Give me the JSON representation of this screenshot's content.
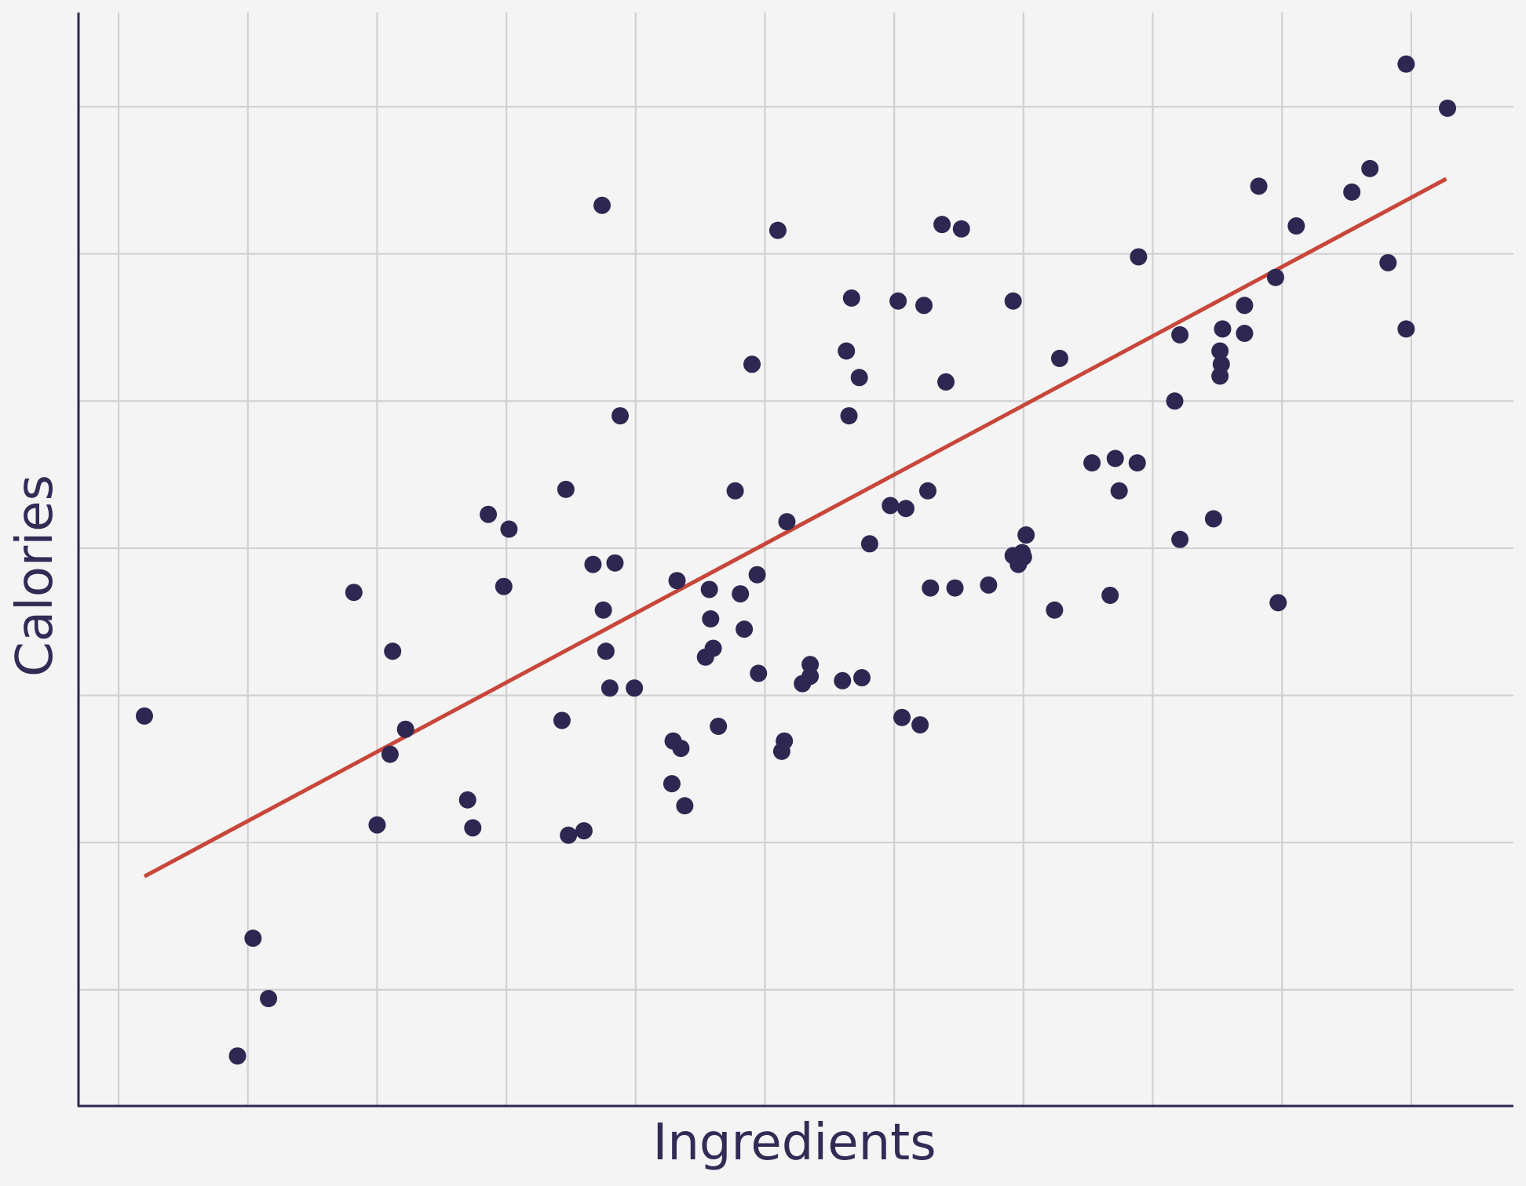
{
  "chart_data": {
    "type": "scatter",
    "title": "",
    "xlabel": "Ingredients",
    "ylabel": "Calories",
    "xlim": [
      0,
      11.1
    ],
    "ylim": [
      0,
      7.43
    ],
    "grid": true,
    "legend": "none",
    "x_ticks": [
      0.31,
      1.31,
      2.31,
      3.31,
      4.31,
      5.31,
      6.31,
      7.31,
      8.31,
      9.31,
      10.31
    ],
    "y_ticks": [
      0.79,
      1.79,
      2.79,
      3.79,
      4.79,
      5.79,
      6.79
    ],
    "tick_labels_shown": false,
    "colors": {
      "background": "#f4f4f4",
      "grid": "#d0d0d0",
      "axis": "#2e2752",
      "points": "#2e2752",
      "trendline": "#c8463a",
      "label": "#332a55"
    },
    "trendline": {
      "x": [
        0.51,
        10.58
      ],
      "y": [
        1.56,
        6.3
      ]
    },
    "series": [
      {
        "points": [
          {
            "x": 0.51,
            "y": 2.65
          },
          {
            "x": 1.23,
            "y": 0.34
          },
          {
            "x": 1.35,
            "y": 1.14
          },
          {
            "x": 1.47,
            "y": 0.73
          },
          {
            "x": 2.13,
            "y": 3.49
          },
          {
            "x": 2.31,
            "y": 1.91
          },
          {
            "x": 2.41,
            "y": 2.39
          },
          {
            "x": 2.43,
            "y": 3.09
          },
          {
            "x": 2.53,
            "y": 2.56
          },
          {
            "x": 3.01,
            "y": 2.08
          },
          {
            "x": 3.05,
            "y": 1.89
          },
          {
            "x": 3.17,
            "y": 4.02
          },
          {
            "x": 3.29,
            "y": 3.53
          },
          {
            "x": 3.33,
            "y": 3.92
          },
          {
            "x": 3.74,
            "y": 2.62
          },
          {
            "x": 3.77,
            "y": 4.19
          },
          {
            "x": 3.79,
            "y": 1.84
          },
          {
            "x": 3.91,
            "y": 1.87
          },
          {
            "x": 3.98,
            "y": 3.68
          },
          {
            "x": 4.05,
            "y": 6.12
          },
          {
            "x": 4.06,
            "y": 3.37
          },
          {
            "x": 4.08,
            "y": 3.09
          },
          {
            "x": 4.11,
            "y": 2.84
          },
          {
            "x": 4.15,
            "y": 3.69
          },
          {
            "x": 4.19,
            "y": 4.69
          },
          {
            "x": 4.3,
            "y": 2.84
          },
          {
            "x": 4.59,
            "y": 2.19
          },
          {
            "x": 4.6,
            "y": 2.48
          },
          {
            "x": 4.63,
            "y": 3.57
          },
          {
            "x": 4.66,
            "y": 2.43
          },
          {
            "x": 4.69,
            "y": 2.04
          },
          {
            "x": 4.85,
            "y": 3.05
          },
          {
            "x": 4.88,
            "y": 3.51
          },
          {
            "x": 4.89,
            "y": 3.31
          },
          {
            "x": 4.91,
            "y": 3.11
          },
          {
            "x": 4.95,
            "y": 2.58
          },
          {
            "x": 5.08,
            "y": 4.18
          },
          {
            "x": 5.12,
            "y": 3.48
          },
          {
            "x": 5.15,
            "y": 3.24
          },
          {
            "x": 5.21,
            "y": 5.04
          },
          {
            "x": 5.25,
            "y": 3.61
          },
          {
            "x": 5.26,
            "y": 2.94
          },
          {
            "x": 5.41,
            "y": 5.95
          },
          {
            "x": 5.44,
            "y": 2.41
          },
          {
            "x": 5.46,
            "y": 2.48
          },
          {
            "x": 5.48,
            "y": 3.97
          },
          {
            "x": 5.6,
            "y": 2.87
          },
          {
            "x": 5.66,
            "y": 3
          },
          {
            "x": 5.66,
            "y": 2.92
          },
          {
            "x": 5.91,
            "y": 2.89
          },
          {
            "x": 5.94,
            "y": 5.13
          },
          {
            "x": 5.96,
            "y": 4.69
          },
          {
            "x": 5.98,
            "y": 5.49
          },
          {
            "x": 6.04,
            "y": 4.95
          },
          {
            "x": 6.06,
            "y": 2.91
          },
          {
            "x": 6.12,
            "y": 3.82
          },
          {
            "x": 6.28,
            "y": 4.08
          },
          {
            "x": 6.34,
            "y": 5.47
          },
          {
            "x": 6.37,
            "y": 2.64
          },
          {
            "x": 6.4,
            "y": 4.06
          },
          {
            "x": 6.51,
            "y": 2.59
          },
          {
            "x": 6.54,
            "y": 5.44
          },
          {
            "x": 6.57,
            "y": 4.18
          },
          {
            "x": 6.59,
            "y": 3.52
          },
          {
            "x": 6.68,
            "y": 5.99
          },
          {
            "x": 6.71,
            "y": 4.92
          },
          {
            "x": 6.78,
            "y": 3.52
          },
          {
            "x": 6.83,
            "y": 5.96
          },
          {
            "x": 7.04,
            "y": 3.54
          },
          {
            "x": 7.23,
            "y": 3.74
          },
          {
            "x": 7.23,
            "y": 5.47
          },
          {
            "x": 7.27,
            "y": 3.68
          },
          {
            "x": 7.3,
            "y": 3.76
          },
          {
            "x": 7.33,
            "y": 3.88
          },
          {
            "x": 7.31,
            "y": 3.73
          },
          {
            "x": 7.55,
            "y": 3.37
          },
          {
            "x": 7.59,
            "y": 5.08
          },
          {
            "x": 7.84,
            "y": 4.37
          },
          {
            "x": 7.98,
            "y": 3.47
          },
          {
            "x": 8.02,
            "y": 4.4
          },
          {
            "x": 8.05,
            "y": 4.18
          },
          {
            "x": 8.2,
            "y": 5.77
          },
          {
            "x": 8.19,
            "y": 4.37
          },
          {
            "x": 8.48,
            "y": 4.79
          },
          {
            "x": 8.52,
            "y": 3.85
          },
          {
            "x": 8.52,
            "y": 5.24
          },
          {
            "x": 8.78,
            "y": 3.99
          },
          {
            "x": 8.83,
            "y": 4.96
          },
          {
            "x": 8.83,
            "y": 5.13
          },
          {
            "x": 8.84,
            "y": 5.04
          },
          {
            "x": 8.85,
            "y": 5.28
          },
          {
            "x": 9.02,
            "y": 5.44
          },
          {
            "x": 9.02,
            "y": 5.25
          },
          {
            "x": 9.13,
            "y": 6.25
          },
          {
            "x": 9.26,
            "y": 5.63
          },
          {
            "x": 9.28,
            "y": 3.42
          },
          {
            "x": 9.42,
            "y": 5.98
          },
          {
            "x": 9.99,
            "y": 6.37
          },
          {
            "x": 10.59,
            "y": 6.78
          },
          {
            "x": 10.13,
            "y": 5.73
          },
          {
            "x": 10.27,
            "y": 5.28
          },
          {
            "x": 10.27,
            "y": 7.08
          },
          {
            "x": 9.85,
            "y": 6.21
          }
        ]
      }
    ]
  }
}
